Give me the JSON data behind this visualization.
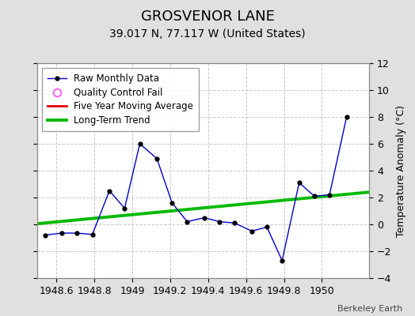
{
  "title": "GROSVENOR LANE",
  "subtitle": "39.017 N, 77.117 W (United States)",
  "ylabel": "Temperature Anomaly (°C)",
  "attribution": "Berkeley Earth",
  "xlim": [
    1948.5,
    1950.25
  ],
  "ylim": [
    -4,
    12
  ],
  "yticks": [
    -4,
    -2,
    0,
    2,
    4,
    6,
    8,
    10,
    12
  ],
  "xticks": [
    1948.6,
    1948.8,
    1949.0,
    1949.2,
    1949.4,
    1949.6,
    1949.8,
    1950.0
  ],
  "xtick_labels": [
    "1948.6",
    "1948.8",
    "1949",
    "1949.2",
    "1949.4",
    "1949.6",
    "1949.8",
    "1950"
  ],
  "raw_x": [
    1948.54,
    1948.63,
    1948.71,
    1948.79,
    1948.88,
    1948.96,
    1949.04,
    1949.13,
    1949.21,
    1949.29,
    1949.38,
    1949.46,
    1949.54,
    1949.63,
    1949.71,
    1949.79,
    1949.88,
    1949.96,
    1950.04,
    1950.13
  ],
  "raw_y": [
    -0.8,
    -0.65,
    -0.65,
    -0.75,
    2.5,
    1.2,
    6.0,
    4.9,
    1.6,
    0.2,
    0.5,
    0.2,
    0.1,
    -0.5,
    -0.2,
    -2.7,
    3.1,
    2.1,
    2.2,
    8.0
  ],
  "trend_x": [
    1948.5,
    1950.25
  ],
  "trend_y": [
    0.05,
    2.4
  ],
  "bg_color": "#e0e0e0",
  "plot_bg_color": "#ffffff",
  "raw_line_color": "#0000cc",
  "raw_marker_color": "#000000",
  "trend_color": "#00bb00",
  "moving_avg_color": "#dd0000",
  "legend_raw_label": "Raw Monthly Data",
  "legend_qc_label": "Quality Control Fail",
  "legend_ma_label": "Five Year Moving Average",
  "legend_trend_label": "Long-Term Trend",
  "title_fontsize": 13,
  "subtitle_fontsize": 10,
  "axis_label_fontsize": 9,
  "tick_fontsize": 9,
  "legend_fontsize": 8.5
}
